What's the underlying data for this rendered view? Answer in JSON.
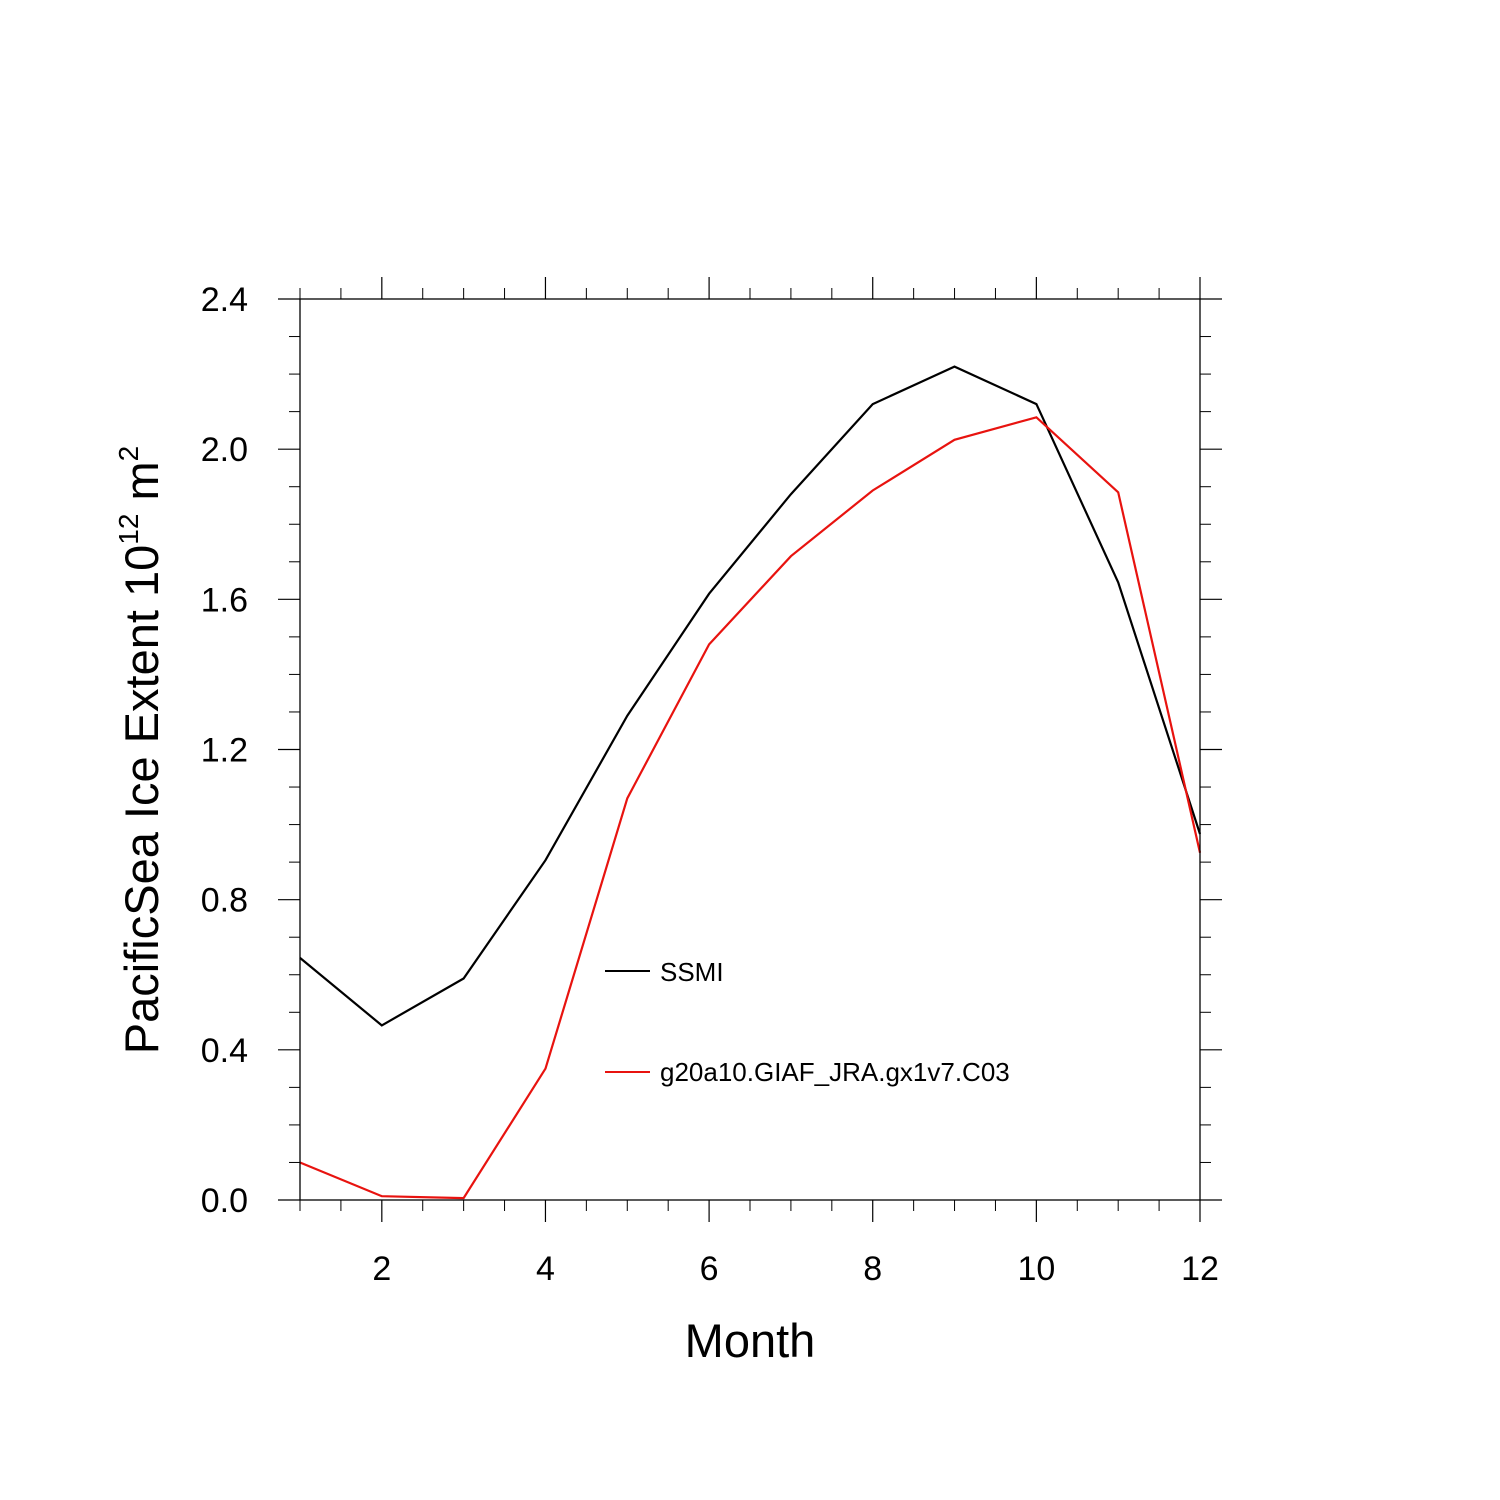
{
  "chart_data": {
    "type": "line",
    "title": "",
    "xlabel": "Month",
    "ylabel_main": "PacificSea Ice Extent 10",
    "ylabel_exp": "12",
    "ylabel_unit": " m",
    "ylabel_unit_exp": "2",
    "xlim": [
      1,
      12
    ],
    "ylim": [
      0,
      2.4
    ],
    "x_ticks": [
      2,
      4,
      6,
      8,
      10,
      12
    ],
    "x_tick_labels": [
      "2",
      "4",
      "6",
      "8",
      "10",
      "12"
    ],
    "y_ticks": [
      0,
      0.4,
      0.8,
      1.2,
      1.6,
      2.0,
      2.4
    ],
    "y_tick_labels": [
      "0.0",
      "0.4",
      "0.8",
      "1.2",
      "1.6",
      "2.0",
      "2.4"
    ],
    "x": [
      1,
      2,
      3,
      4,
      5,
      6,
      7,
      8,
      9,
      10,
      11,
      12
    ],
    "series": [
      {
        "name": "SSMI",
        "color": "#000000",
        "values": [
          0.645,
          0.465,
          0.59,
          0.905,
          1.29,
          1.615,
          1.88,
          2.12,
          2.22,
          2.12,
          1.645,
          0.975
        ]
      },
      {
        "name": "g20a10.GIAF_JRA.gx1v7.C03",
        "color": "#e8130f",
        "values": [
          0.1,
          0.01,
          0.005,
          0.35,
          1.07,
          1.48,
          1.715,
          1.89,
          2.025,
          2.085,
          1.885,
          0.925
        ]
      }
    ],
    "legend": {
      "placement": "center"
    },
    "grid": false
  }
}
